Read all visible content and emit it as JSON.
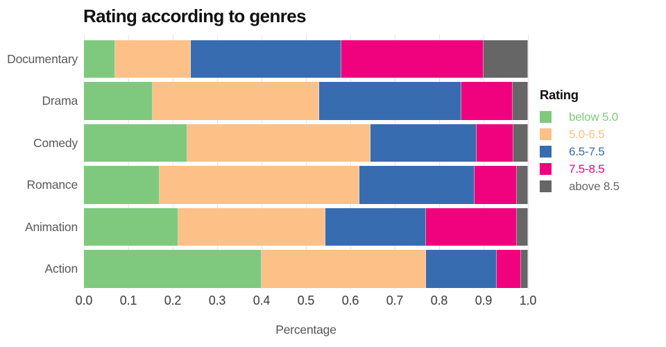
{
  "title": "Rating according to genres",
  "chart_data": {
    "type": "bar",
    "orientation": "horizontal",
    "stacked": true,
    "title": "Rating according to genres",
    "xlabel": "Percentage",
    "ylabel": "",
    "xlim": [
      0,
      1
    ],
    "grid": true,
    "legend_position": "right",
    "legend_title": "Rating",
    "x_ticks": [
      "0.0",
      "0.1",
      "0.2",
      "0.3",
      "0.4",
      "0.5",
      "0.6",
      "0.7",
      "0.8",
      "0.9",
      "1.0"
    ],
    "categories": [
      "Documentary",
      "Drama",
      "Comedy",
      "Romance",
      "Animation",
      "Action"
    ],
    "series": [
      {
        "name": "below 5.0",
        "color": "#7FC97F",
        "values": [
          0.07,
          0.155,
          0.233,
          0.17,
          0.213,
          0.4
        ]
      },
      {
        "name": "5.0-6.5",
        "color": "#FDC086",
        "values": [
          0.17,
          0.375,
          0.412,
          0.45,
          0.33,
          0.37
        ]
      },
      {
        "name": "6.5-7.5",
        "color": "#386CB0",
        "values": [
          0.34,
          0.32,
          0.24,
          0.26,
          0.228,
          0.16
        ]
      },
      {
        "name": "7.5-8.5",
        "color": "#F0027F",
        "values": [
          0.32,
          0.115,
          0.082,
          0.095,
          0.204,
          0.055
        ]
      },
      {
        "name": "above 8.5",
        "color": "#666666",
        "values": [
          0.1,
          0.035,
          0.033,
          0.025,
          0.025,
          0.015
        ]
      }
    ]
  },
  "colors": {
    "background": "#ffffff",
    "gridline": "#f1dfdf",
    "title_text": "#111111",
    "axis_text": "#3a3a3a",
    "label_text": "#595959"
  }
}
